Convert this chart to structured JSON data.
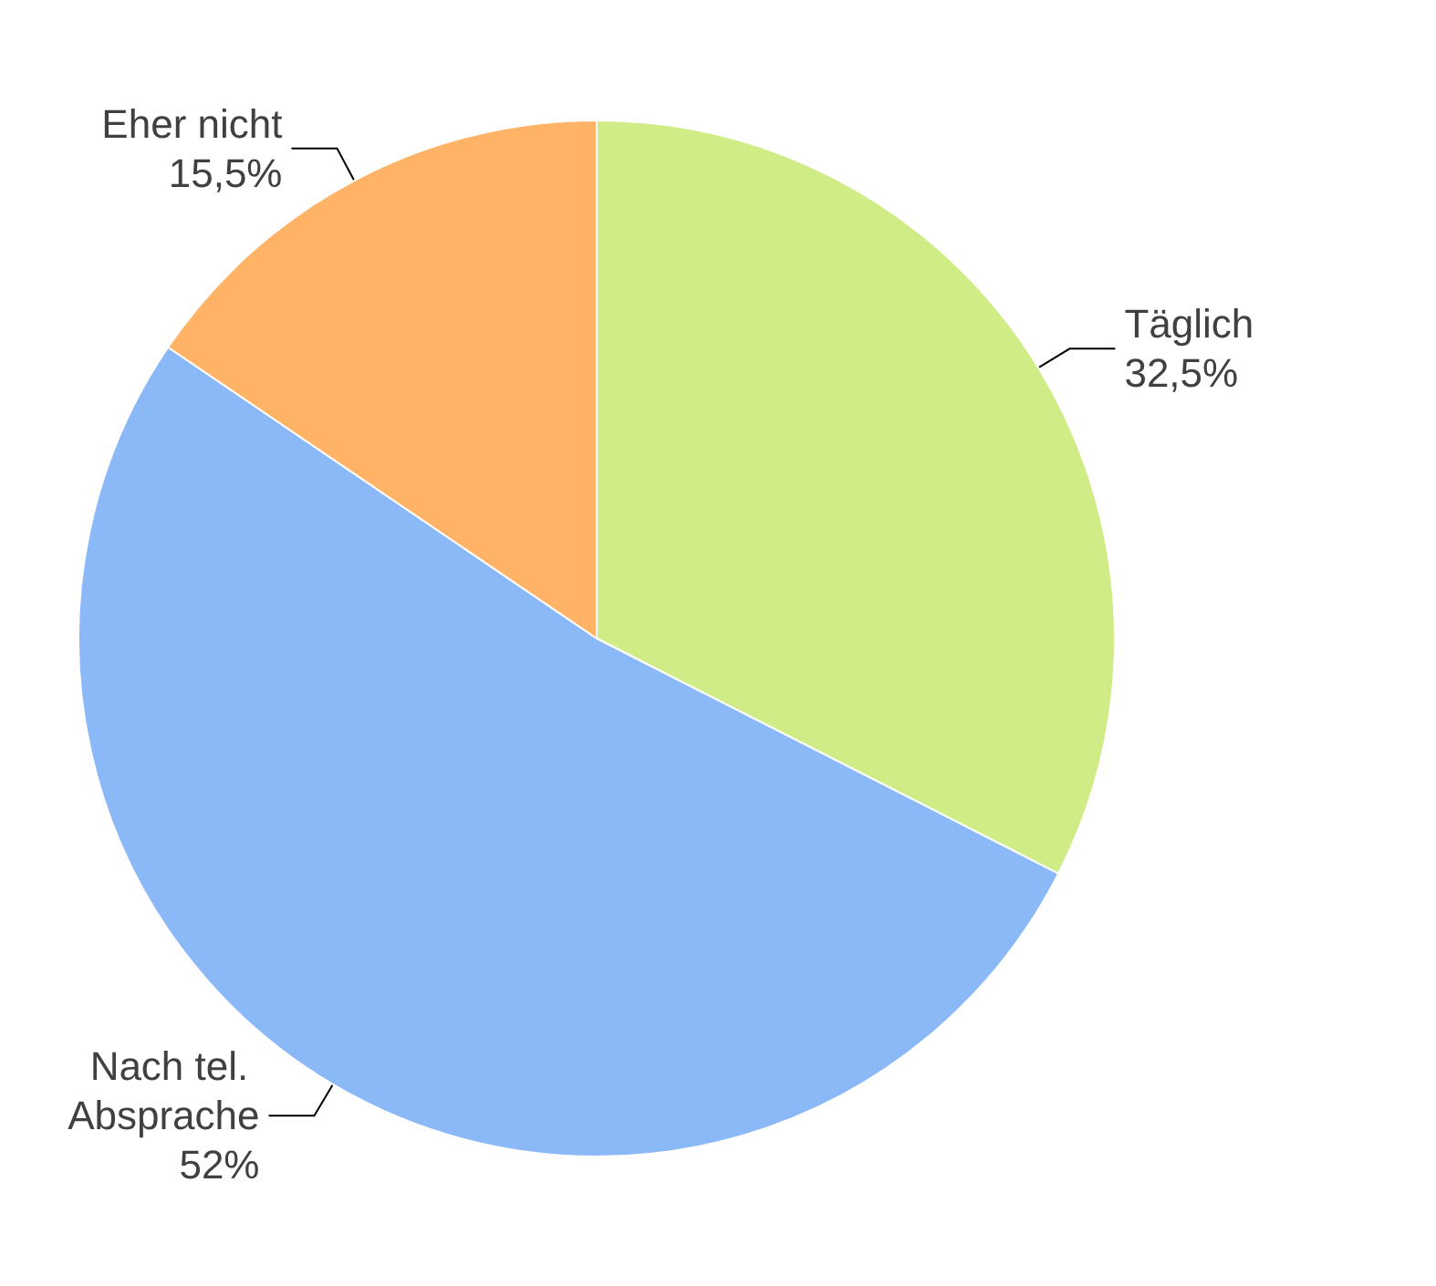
{
  "chart_data": {
    "type": "pie",
    "categories": [
      "Täglich",
      "Nach tel. Absprache",
      "Eher nicht"
    ],
    "values": [
      32.5,
      52,
      15.5
    ],
    "value_labels": [
      "32,5%",
      "52%",
      "15,5%"
    ],
    "colors": [
      "#cfec86",
      "#8bb9f7",
      "#ffb366"
    ],
    "legend": false
  }
}
